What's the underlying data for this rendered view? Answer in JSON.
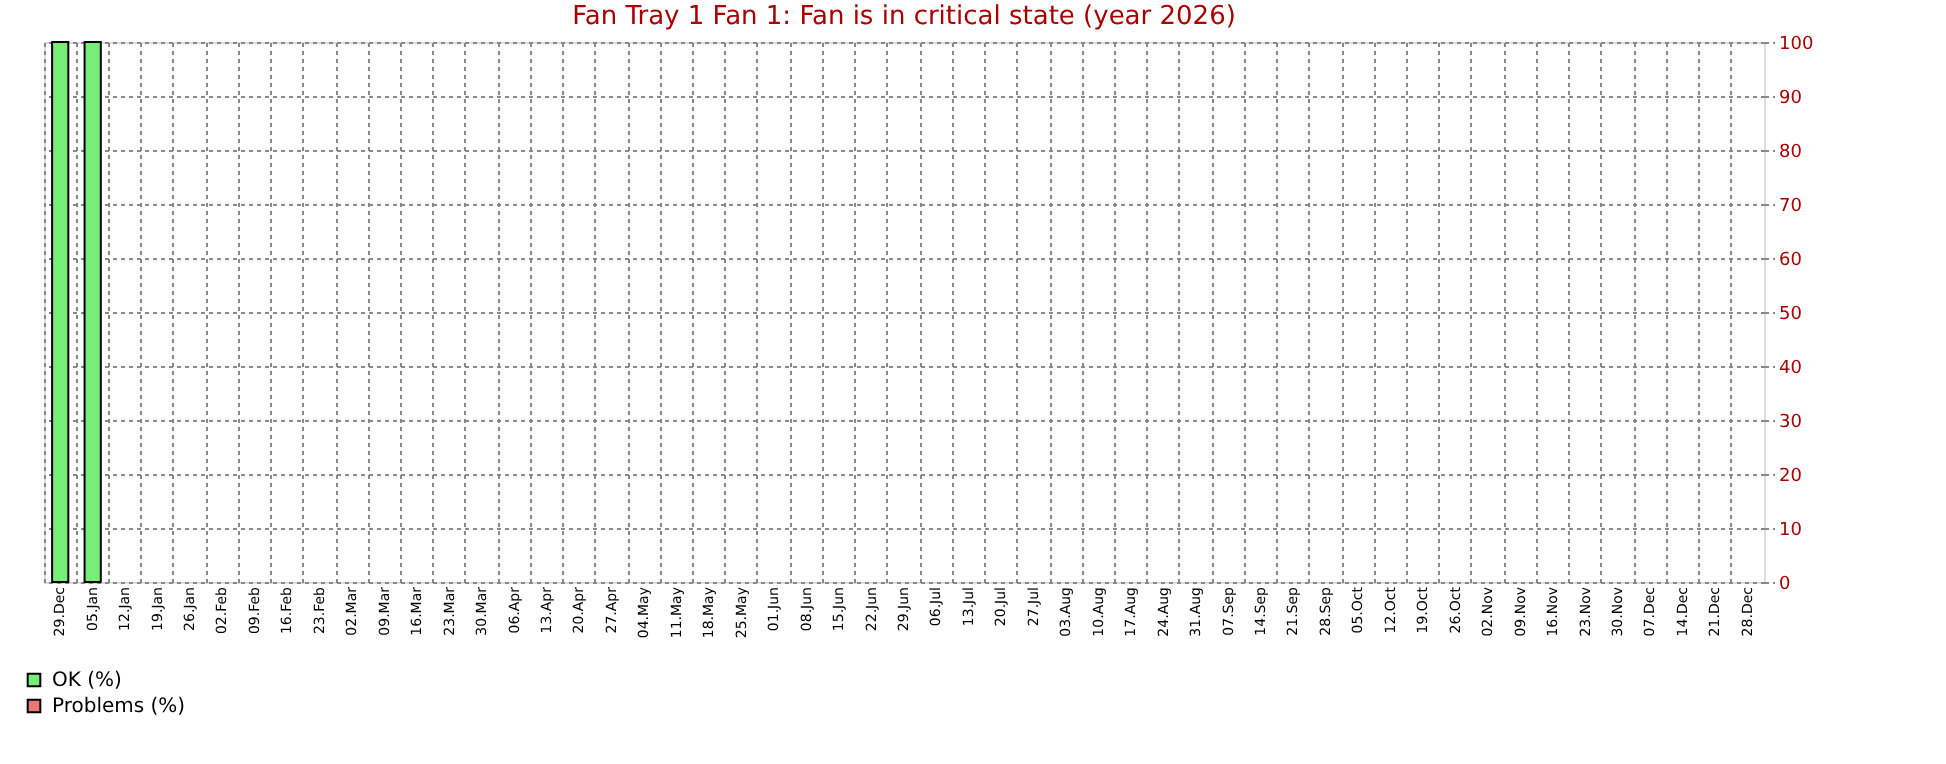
{
  "chart_data": {
    "type": "bar",
    "title": "Fan Tray 1 Fan 1: Fan is in critical state (year 2026)",
    "categories": [
      "29.Dec",
      "05.Jan",
      "12.Jan",
      "19.Jan",
      "26.Jan",
      "02.Feb",
      "09.Feb",
      "16.Feb",
      "23.Feb",
      "02.Mar",
      "09.Mar",
      "16.Mar",
      "23.Mar",
      "30.Mar",
      "06.Apr",
      "13.Apr",
      "20.Apr",
      "27.Apr",
      "04.May",
      "11.May",
      "18.May",
      "25.May",
      "01.Jun",
      "08.Jun",
      "15.Jun",
      "22.Jun",
      "29.Jun",
      "06.Jul",
      "13.Jul",
      "20.Jul",
      "27.Jul",
      "03.Aug",
      "10.Aug",
      "17.Aug",
      "24.Aug",
      "31.Aug",
      "07.Sep",
      "14.Sep",
      "21.Sep",
      "28.Sep",
      "05.Oct",
      "12.Oct",
      "19.Oct",
      "26.Oct",
      "02.Nov",
      "09.Nov",
      "16.Nov",
      "23.Nov",
      "30.Nov",
      "07.Dec",
      "14.Dec",
      "21.Dec",
      "28.Dec"
    ],
    "series": [
      {
        "name": "OK (%)",
        "color": "#77ee77",
        "values": [
          100,
          100,
          null,
          null,
          null,
          null,
          null,
          null,
          null,
          null,
          null,
          null,
          null,
          null,
          null,
          null,
          null,
          null,
          null,
          null,
          null,
          null,
          null,
          null,
          null,
          null,
          null,
          null,
          null,
          null,
          null,
          null,
          null,
          null,
          null,
          null,
          null,
          null,
          null,
          null,
          null,
          null,
          null,
          null,
          null,
          null,
          null,
          null,
          null,
          null,
          null,
          null,
          null
        ]
      },
      {
        "name": "Problems (%)",
        "color": "#ee7777",
        "values": [
          null,
          null,
          null,
          null,
          null,
          null,
          null,
          null,
          null,
          null,
          null,
          null,
          null,
          null,
          null,
          null,
          null,
          null,
          null,
          null,
          null,
          null,
          null,
          null,
          null,
          null,
          null,
          null,
          null,
          null,
          null,
          null,
          null,
          null,
          null,
          null,
          null,
          null,
          null,
          null,
          null,
          null,
          null,
          null,
          null,
          null,
          null,
          null,
          null,
          null,
          null,
          null,
          null
        ]
      }
    ],
    "ylim": [
      0,
      100
    ],
    "yticks": [
      0,
      10,
      20,
      30,
      40,
      50,
      60,
      70,
      80,
      90,
      100
    ],
    "grid": true,
    "legend": "bottom left"
  }
}
